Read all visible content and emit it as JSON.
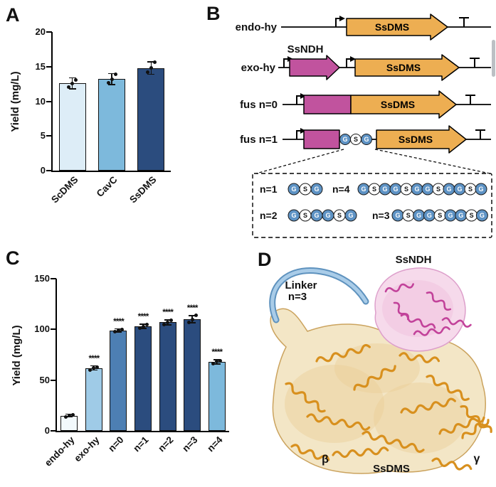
{
  "page": {
    "background": "#ffffff"
  },
  "scrollbar": {
    "color": "#bcc0c4"
  },
  "panels": {
    "A": "A",
    "B": "B",
    "C": "C",
    "D": "D"
  },
  "chart_data": [
    {
      "id": "panelA",
      "type": "bar",
      "title": "",
      "ylabel": "Yield (mg/L)",
      "xlabel": "",
      "categories": [
        "ScDMS",
        "CavC",
        "SsDMS"
      ],
      "values": [
        12.6,
        13.2,
        14.8
      ],
      "errors": [
        0.8,
        0.8,
        0.9
      ],
      "points": [
        [
          12.1,
          12.6,
          13.1
        ],
        [
          12.7,
          13.2,
          13.9
        ],
        [
          14.2,
          14.8,
          15.6
        ]
      ],
      "significance": [
        "",
        "",
        ""
      ],
      "bar_colors": [
        "#DDEDF7",
        "#7DB9DC",
        "#2B4C7E"
      ],
      "ylim": [
        0,
        20
      ],
      "yticks": [
        0,
        5,
        10,
        15,
        20
      ],
      "grid": false,
      "legend": null
    },
    {
      "id": "panelC",
      "type": "bar",
      "title": "",
      "ylabel": "Yield (mg/L)",
      "xlabel": "",
      "categories": [
        "endo-hy",
        "exo-hy",
        "n=0",
        "n=1",
        "n=2",
        "n=3",
        "n=4"
      ],
      "values": [
        15,
        62,
        99,
        103,
        107,
        110,
        68
      ],
      "errors": [
        1.5,
        2,
        1.5,
        2,
        2.5,
        3.5,
        2
      ],
      "points": [
        [
          14,
          15,
          16
        ],
        [
          60,
          62,
          63
        ],
        [
          98,
          99,
          100
        ],
        [
          101,
          103,
          105
        ],
        [
          105,
          107,
          109
        ],
        [
          107,
          110,
          114
        ],
        [
          66,
          68,
          69
        ]
      ],
      "significance": [
        "",
        "****",
        "****",
        "****",
        "****",
        "****",
        "****"
      ],
      "bar_colors": [
        "#F2F9FC",
        "#9FCBE7",
        "#4D7FB3",
        "#2B4C7E",
        "#2B4C7E",
        "#2B4C7E",
        "#7DB9DC"
      ],
      "ylim": [
        0,
        150
      ],
      "yticks": [
        0,
        50,
        100,
        150
      ],
      "grid": false,
      "legend": null
    }
  ],
  "panelB": {
    "rows": [
      {
        "name": "endo-hy",
        "gene_label": "SsDMS"
      },
      {
        "name": "exo-hy",
        "ndh_label": "SsNDH",
        "gene_label": "SsDMS"
      },
      {
        "name": "fus n=0",
        "gene_label": "SsDMS"
      },
      {
        "name": "fus n=1",
        "gene_label": "SsDMS"
      }
    ],
    "linker_groups": [
      {
        "label": "n=1",
        "sequence": "GSG"
      },
      {
        "label": "n=4",
        "sequence": "GSGGSGGSGGSG"
      },
      {
        "label": "n=2",
        "sequence": "GSGGSG"
      },
      {
        "label": "n=3",
        "sequence": "GSGGSGGSG"
      }
    ],
    "fus1_inline_sequence": "GSG",
    "colors": {
      "gene_arrow": "#EDAE52",
      "ndh_arrow": "#C1539E",
      "g_bead": "#5E93C5",
      "s_bead": "#FFFFFF"
    }
  },
  "panelD": {
    "ssndh_label": "SsNDH",
    "linker_label_line1": "Linker",
    "linker_label_line2": "n=3",
    "ssdms_label": "SsDMS",
    "beta_label": "β",
    "gamma_label": "γ",
    "colors": {
      "ndh_surface": "#F6DAEB",
      "ndh_cartoon": "#C2429A",
      "dms_surface": "#F3E6C6",
      "dms_cartoon": "#D8901E",
      "linker_ribbon": "#A9CCE8"
    }
  }
}
